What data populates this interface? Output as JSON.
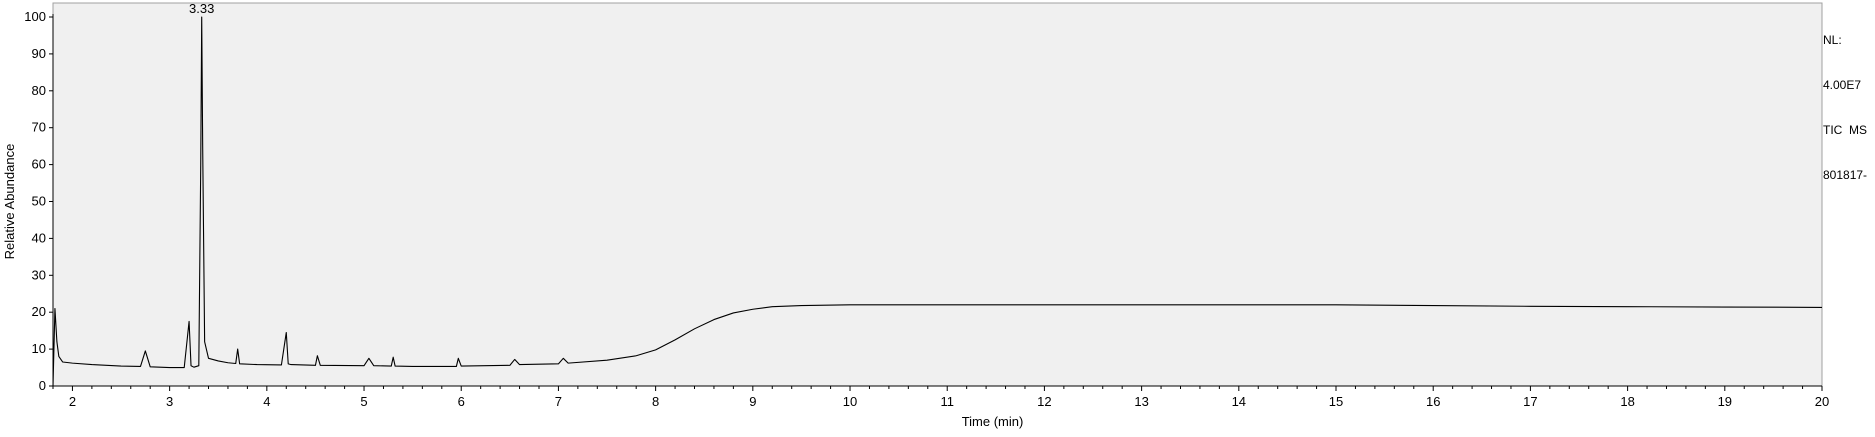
{
  "chart_data": {
    "type": "line",
    "title": "",
    "xlabel": "Time (min)",
    "ylabel": "Relative Abundance",
    "xlim": [
      1.8,
      20
    ],
    "ylim": [
      0,
      100
    ],
    "x_ticks": [
      2,
      3,
      4,
      5,
      6,
      7,
      8,
      9,
      10,
      11,
      12,
      13,
      14,
      15,
      16,
      17,
      18,
      19,
      20
    ],
    "y_ticks": [
      0,
      10,
      20,
      30,
      40,
      50,
      60,
      70,
      80,
      90,
      100
    ],
    "grid": false,
    "peak_annotations": [
      {
        "x": 3.33,
        "y": 100,
        "label": "3.33"
      }
    ],
    "series": [
      {
        "x": [
          1.8,
          1.82,
          1.84,
          1.86,
          1.9,
          2.0,
          2.2,
          2.5,
          2.7,
          2.75,
          2.8,
          3.0,
          3.15,
          3.2,
          3.22,
          3.25,
          3.3,
          3.32,
          3.33,
          3.34,
          3.36,
          3.4,
          3.5,
          3.6,
          3.68,
          3.7,
          3.72,
          3.9,
          4.15,
          4.2,
          4.22,
          4.25,
          4.5,
          4.52,
          4.55,
          5.0,
          5.05,
          5.1,
          5.28,
          5.3,
          5.32,
          5.5,
          5.95,
          5.97,
          6.0,
          6.5,
          6.55,
          6.6,
          7.0,
          7.05,
          7.1,
          7.5,
          7.8,
          8.0,
          8.2,
          8.4,
          8.6,
          8.8,
          9.0,
          9.2,
          9.5,
          10.0,
          11.0,
          12.0,
          13.0,
          14.0,
          15.0,
          16.0,
          17.0,
          18.0,
          19.0,
          20.0
        ],
        "y": [
          0,
          21,
          12,
          8,
          6.5,
          6.2,
          5.8,
          5.4,
          5.3,
          9.5,
          5.2,
          5.0,
          5.0,
          17.5,
          5.5,
          5.1,
          5.5,
          60,
          100,
          65,
          12,
          7.5,
          6.8,
          6.3,
          6.1,
          10,
          6.0,
          5.8,
          5.7,
          14.5,
          6.0,
          5.8,
          5.6,
          8.2,
          5.6,
          5.5,
          7.5,
          5.5,
          5.4,
          7.8,
          5.4,
          5.3,
          5.3,
          7.5,
          5.4,
          5.6,
          7.2,
          5.8,
          6.0,
          7.5,
          6.2,
          7.0,
          8.2,
          9.8,
          12.5,
          15.5,
          18.0,
          19.8,
          20.8,
          21.5,
          21.8,
          22.0,
          22.0,
          22.0,
          22.0,
          22.0,
          22.0,
          21.8,
          21.6,
          21.5,
          21.4,
          21.3
        ]
      }
    ]
  },
  "side_info": {
    "line1": "NL:",
    "line2": "4.00E7",
    "line3": "TIC  MS",
    "line4": "801817-"
  }
}
